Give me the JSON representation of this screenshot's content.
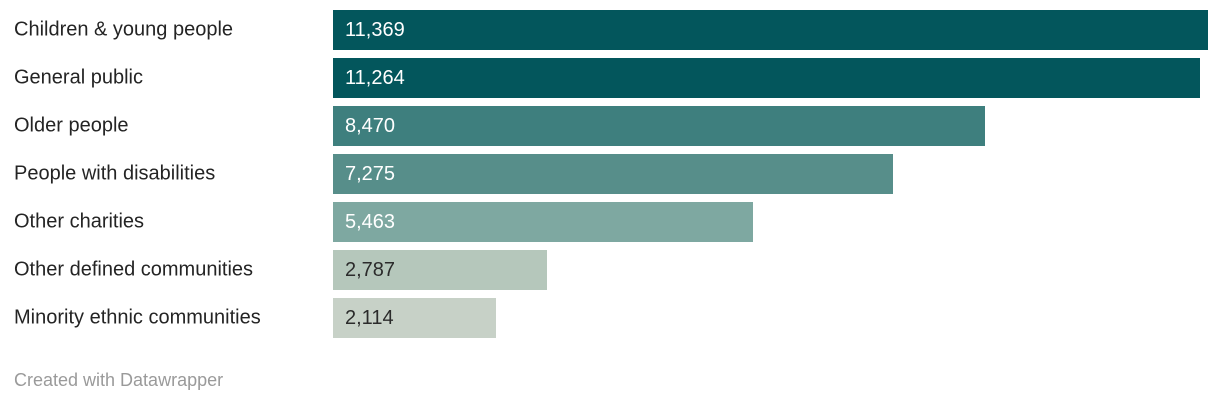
{
  "chart_data": {
    "type": "bar",
    "orientation": "horizontal",
    "title": "",
    "xlabel": "",
    "ylabel": "",
    "xlim": [
      0,
      11369
    ],
    "grid": false,
    "legend_position": "none",
    "categories": [
      "Children & young people",
      "General public",
      "Older people",
      "People with disabilities",
      "Other charities",
      "Other defined communities",
      "Minority ethnic communities"
    ],
    "values": [
      11369,
      11264,
      8470,
      7275,
      5463,
      2787,
      2114
    ],
    "value_labels": [
      "11,369",
      "11,264",
      "8,470",
      "7,275",
      "5,463",
      "2,787",
      "2,114"
    ],
    "bar_colors": [
      "#03565c",
      "#03565c",
      "#3e7f7e",
      "#578e8a",
      "#7ea8a1",
      "#b5c7bb",
      "#c7d1c7"
    ],
    "value_label_colors": [
      "#ffffff",
      "#ffffff",
      "#ffffff",
      "#ffffff",
      "#ffffff",
      "#2b2b2b",
      "#2b2b2b"
    ]
  },
  "layout_colors": {
    "background": "#ffffff",
    "category_label": "#242424",
    "attribution": "#9a9a9a"
  },
  "footer": {
    "attribution": "Created with Datawrapper"
  }
}
